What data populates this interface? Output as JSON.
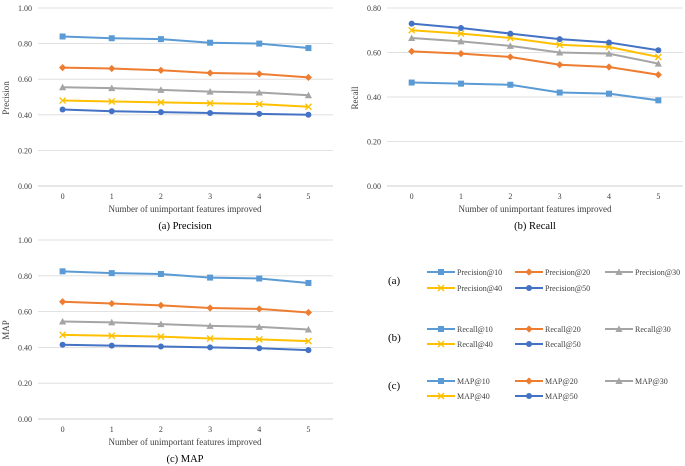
{
  "colors": {
    "@10": "#5B9BD5",
    "@20": "#ED7D31",
    "@30": "#A5A5A5",
    "@40": "#FFC000",
    "@50": "#4472C4",
    "grid": "#D9D9D9"
  },
  "chart_data": [
    {
      "type": "line",
      "id": "precision",
      "caption": "(a)  Precision",
      "title": "",
      "xlabel": "Number of unimportant features improved",
      "ylabel": "Precision",
      "categories": [
        "0",
        "1",
        "2",
        "3",
        "4",
        "5"
      ],
      "ylim": [
        0,
        1.0
      ],
      "yticks": [
        "0.00",
        "0.20",
        "0.40",
        "0.60",
        "0.80",
        "1.00"
      ],
      "grid": true,
      "series": [
        {
          "name": "Precision@10",
          "key": "@10",
          "marker": "square",
          "values": [
            0.84,
            0.83,
            0.825,
            0.805,
            0.8,
            0.775
          ]
        },
        {
          "name": "Precision@20",
          "key": "@20",
          "marker": "diamond",
          "values": [
            0.665,
            0.66,
            0.65,
            0.635,
            0.63,
            0.61
          ]
        },
        {
          "name": "Precision@30",
          "key": "@30",
          "marker": "triangle",
          "values": [
            0.555,
            0.55,
            0.54,
            0.53,
            0.525,
            0.51
          ]
        },
        {
          "name": "Precision@40",
          "key": "@40",
          "marker": "x",
          "values": [
            0.48,
            0.475,
            0.47,
            0.465,
            0.46,
            0.445
          ]
        },
        {
          "name": "Precision@50",
          "key": "@50",
          "marker": "circle",
          "values": [
            0.43,
            0.42,
            0.415,
            0.41,
            0.405,
            0.4
          ]
        }
      ]
    },
    {
      "type": "line",
      "id": "recall",
      "caption": "(b) Recall",
      "title": "",
      "xlabel": "Number of unimportant features improved",
      "ylabel": "Recall",
      "categories": [
        "0",
        "1",
        "2",
        "3",
        "4",
        "5"
      ],
      "ylim": [
        0,
        0.8
      ],
      "yticks": [
        "0.00",
        "0.20",
        "0.40",
        "0.60",
        "0.80"
      ],
      "grid": true,
      "series": [
        {
          "name": "Recall@10",
          "key": "@10",
          "marker": "square",
          "values": [
            0.465,
            0.46,
            0.455,
            0.42,
            0.415,
            0.385
          ]
        },
        {
          "name": "Recall@20",
          "key": "@20",
          "marker": "diamond",
          "values": [
            0.605,
            0.595,
            0.58,
            0.545,
            0.535,
            0.5
          ]
        },
        {
          "name": "Recall@30",
          "key": "@30",
          "marker": "triangle",
          "values": [
            0.665,
            0.65,
            0.63,
            0.6,
            0.595,
            0.55
          ]
        },
        {
          "name": "Recall@40",
          "key": "@40",
          "marker": "x",
          "values": [
            0.7,
            0.685,
            0.665,
            0.635,
            0.625,
            0.58
          ]
        },
        {
          "name": "Recall@50",
          "key": "@50",
          "marker": "circle",
          "values": [
            0.73,
            0.71,
            0.685,
            0.66,
            0.645,
            0.61
          ]
        }
      ]
    },
    {
      "type": "line",
      "id": "map",
      "caption": "(c)  MAP",
      "title": "",
      "xlabel": "Number of unimportant features improved",
      "ylabel": "MAP",
      "categories": [
        "0",
        "1",
        "2",
        "3",
        "4",
        "5"
      ],
      "ylim": [
        0,
        1.0
      ],
      "yticks": [
        "0.00",
        "0.20",
        "0.40",
        "0.60",
        "0.80",
        "1.00"
      ],
      "grid": true,
      "series": [
        {
          "name": "MAP@10",
          "key": "@10",
          "marker": "square",
          "values": [
            0.825,
            0.815,
            0.81,
            0.79,
            0.785,
            0.76
          ]
        },
        {
          "name": "MAP@20",
          "key": "@20",
          "marker": "diamond",
          "values": [
            0.655,
            0.645,
            0.635,
            0.62,
            0.615,
            0.595
          ]
        },
        {
          "name": "MAP@30",
          "key": "@30",
          "marker": "triangle",
          "values": [
            0.545,
            0.54,
            0.53,
            0.52,
            0.515,
            0.5
          ]
        },
        {
          "name": "MAP@40",
          "key": "@40",
          "marker": "x",
          "values": [
            0.47,
            0.465,
            0.46,
            0.45,
            0.445,
            0.435
          ]
        },
        {
          "name": "MAP@50",
          "key": "@50",
          "marker": "circle",
          "values": [
            0.415,
            0.41,
            0.405,
            0.4,
            0.395,
            0.385
          ]
        }
      ]
    }
  ],
  "legends": [
    {
      "label": "(a)",
      "entries": [
        "Precision@10",
        "Precision@20",
        "Precision@30",
        "Precision@40",
        "Precision@50"
      ]
    },
    {
      "label": "(b)",
      "entries": [
        "Recall@10",
        "Recall@20",
        "Recall@30",
        "Recall@40",
        "Recall@50"
      ]
    },
    {
      "label": "(c)",
      "entries": [
        "MAP@10",
        "MAP@20",
        "MAP@30",
        "MAP@40",
        "MAP@50"
      ]
    }
  ]
}
